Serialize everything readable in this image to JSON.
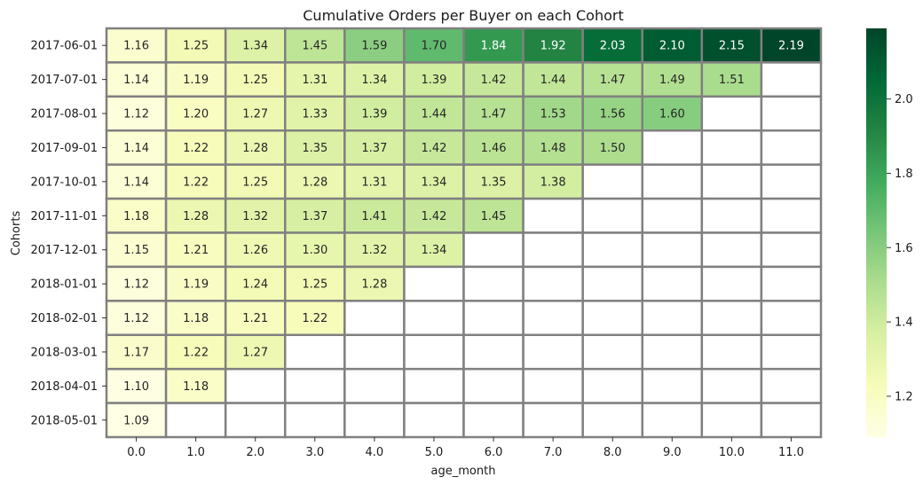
{
  "chart_data": {
    "type": "heatmap",
    "title": "Cumulative Orders per Buyer on each Cohort",
    "xlabel": "age_month",
    "ylabel": "Cohorts",
    "x": [
      "0.0",
      "1.0",
      "2.0",
      "3.0",
      "4.0",
      "5.0",
      "6.0",
      "7.0",
      "8.0",
      "9.0",
      "10.0",
      "11.0"
    ],
    "y": [
      "2017-06-01",
      "2017-07-01",
      "2017-08-01",
      "2017-09-01",
      "2017-10-01",
      "2017-11-01",
      "2017-12-01",
      "2018-01-01",
      "2018-02-01",
      "2018-03-01",
      "2018-04-01",
      "2018-05-01"
    ],
    "values": [
      [
        "1.16",
        "1.25",
        "1.34",
        "1.45",
        "1.59",
        "1.70",
        "1.84",
        "1.92",
        "2.03",
        "2.10",
        "2.15",
        "2.19"
      ],
      [
        "1.14",
        "1.19",
        "1.25",
        "1.31",
        "1.34",
        "1.39",
        "1.42",
        "1.44",
        "1.47",
        "1.49",
        "1.51",
        null
      ],
      [
        "1.12",
        "1.20",
        "1.27",
        "1.33",
        "1.39",
        "1.44",
        "1.47",
        "1.53",
        "1.56",
        "1.60",
        null,
        null
      ],
      [
        "1.14",
        "1.22",
        "1.28",
        "1.35",
        "1.37",
        "1.42",
        "1.46",
        "1.48",
        "1.50",
        null,
        null,
        null
      ],
      [
        "1.14",
        "1.22",
        "1.25",
        "1.28",
        "1.31",
        "1.34",
        "1.35",
        "1.38",
        null,
        null,
        null,
        null
      ],
      [
        "1.18",
        "1.28",
        "1.32",
        "1.37",
        "1.41",
        "1.42",
        "1.45",
        null,
        null,
        null,
        null,
        null
      ],
      [
        "1.15",
        "1.21",
        "1.26",
        "1.30",
        "1.32",
        "1.34",
        null,
        null,
        null,
        null,
        null,
        null
      ],
      [
        "1.12",
        "1.19",
        "1.24",
        "1.25",
        "1.28",
        null,
        null,
        null,
        null,
        null,
        null,
        null
      ],
      [
        "1.12",
        "1.18",
        "1.21",
        "1.22",
        null,
        null,
        null,
        null,
        null,
        null,
        null,
        null
      ],
      [
        "1.17",
        "1.22",
        "1.27",
        null,
        null,
        null,
        null,
        null,
        null,
        null,
        null,
        null
      ],
      [
        "1.10",
        "1.18",
        null,
        null,
        null,
        null,
        null,
        null,
        null,
        null,
        null,
        null
      ],
      [
        "1.09",
        null,
        null,
        null,
        null,
        null,
        null,
        null,
        null,
        null,
        null,
        null
      ]
    ],
    "colorbar": {
      "colormap": "YlGn",
      "vmin": 1.09,
      "vmax": 2.19,
      "ticks": [
        "1.2",
        "1.4",
        "1.6",
        "1.8",
        "2.0"
      ]
    },
    "cell_border_color": "#808080",
    "grid": false
  }
}
